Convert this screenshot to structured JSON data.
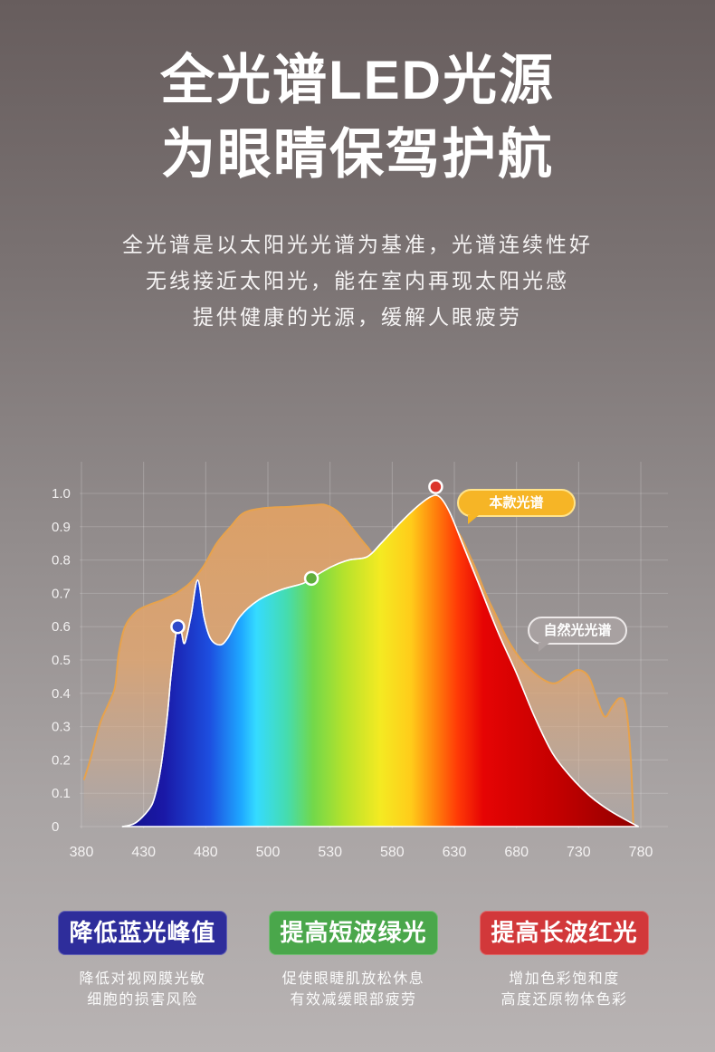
{
  "title": {
    "line1": "全光谱LED光源",
    "line2": "为眼睛保驾护航"
  },
  "intro": [
    "全光谱是以太阳光光谱为基准，光谱连续性好",
    "无线接近太阳光，能在室内再现太阳光感",
    "提供健康的光源，缓解人眼疲劳"
  ],
  "chart_data": {
    "type": "area",
    "x_ticks": [
      380,
      430,
      480,
      500,
      530,
      580,
      630,
      680,
      730,
      780
    ],
    "y_ticks": [
      "1.0",
      "0.9",
      "0.8",
      "0.7",
      "0.6",
      "0.5",
      "0.4",
      "0.3",
      "0.2",
      "0.1",
      "0"
    ],
    "xlim": [
      380,
      780
    ],
    "ylim": [
      0,
      1.0
    ],
    "grid": true,
    "series": [
      {
        "name": "自然光光谱",
        "label_color": "#a8a1a1",
        "line_color": "#e7a24c",
        "x": [
          382,
          387,
          395,
          402,
          407,
          410,
          415,
          424,
          434,
          445,
          456,
          467,
          478,
          483.5,
          488,
          492,
          498,
          511,
          522,
          528,
          538,
          549,
          560,
          568,
          586,
          608,
          629,
          644,
          655,
          664,
          673,
          684,
          698,
          710,
          720,
          729,
          738,
          745,
          751,
          757,
          763,
          768,
          772,
          774
        ],
        "y": [
          0.14,
          0.2,
          0.31,
          0.37,
          0.42,
          0.52,
          0.6,
          0.645,
          0.665,
          0.68,
          0.7,
          0.73,
          0.78,
          0.85,
          0.9,
          0.94,
          0.955,
          0.96,
          0.965,
          0.965,
          0.94,
          0.89,
          0.84,
          0.815,
          0.86,
          0.9,
          0.9,
          0.8,
          0.7,
          0.63,
          0.56,
          0.5,
          0.45,
          0.43,
          0.45,
          0.47,
          0.45,
          0.38,
          0.33,
          0.36,
          0.385,
          0.36,
          0.2,
          0
        ]
      },
      {
        "name": "本款光谱",
        "label_color": "#f6b526",
        "x": [
          413,
          423,
          434,
          439,
          444,
          449,
          452.5,
          457,
          460,
          463,
          468,
          473.5,
          478.5,
          481.5,
          484.5,
          487,
          491,
          497,
          506,
          517,
          521,
          531,
          545,
          560,
          571,
          586,
          600,
          611,
          618,
          626,
          636.5,
          651,
          665.5,
          680,
          694.5,
          709,
          723.5,
          738,
          752.5,
          767,
          778
        ],
        "y": [
          0,
          0.01,
          0.05,
          0.09,
          0.18,
          0.33,
          0.47,
          0.6,
          0.59,
          0.55,
          0.63,
          0.74,
          0.63,
          0.565,
          0.545,
          0.565,
          0.63,
          0.68,
          0.71,
          0.73,
          0.745,
          0.78,
          0.8,
          0.81,
          0.85,
          0.91,
          0.96,
          0.99,
          0.99,
          0.945,
          0.85,
          0.715,
          0.58,
          0.46,
          0.33,
          0.22,
          0.15,
          0.095,
          0.054,
          0.022,
          0
        ]
      }
    ],
    "markers": [
      {
        "x": 457.5,
        "y": 0.6,
        "color": "#2f49c9"
      },
      {
        "x": 521,
        "y": 0.745,
        "color": "#5fae3b"
      },
      {
        "x": 615,
        "y": 1.02,
        "color": "#dc352c"
      }
    ]
  },
  "features": [
    {
      "label": "降低蓝光峰值",
      "color": "#2e2d9b",
      "desc": [
        "降低对视网膜光敏",
        "细胞的损害风险"
      ]
    },
    {
      "label": "提高短波绿光",
      "color": "#4aa74b",
      "desc": [
        "促使眼睫肌放松休息",
        "有效减缓眼部疲劳"
      ]
    },
    {
      "label": "提高长波红光",
      "color": "#d2383a",
      "desc": [
        "增加色彩饱和度",
        "高度还原物体色彩"
      ]
    }
  ]
}
